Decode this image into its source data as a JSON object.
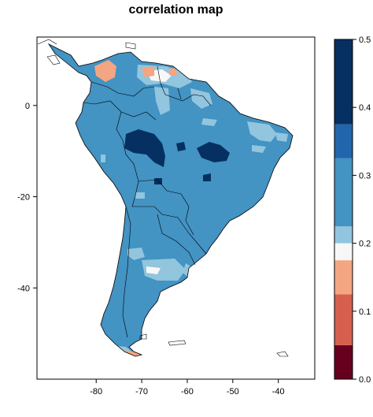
{
  "title": "correlation map",
  "chart_data": {
    "type": "heatmap",
    "title": "correlation map",
    "xlabel": "",
    "ylabel": "",
    "x_ticks": [
      -80,
      -70,
      -60,
      -50,
      -40
    ],
    "y_ticks": [
      0,
      -20,
      -40
    ],
    "xlim": [
      -93,
      -32
    ],
    "ylim": [
      -60,
      15
    ],
    "colorbar": {
      "ticks": [
        0.0,
        0.1,
        0.2,
        0.3,
        0.4,
        0.5
      ],
      "levels": [
        {
          "from": 0.0,
          "to": 0.05,
          "color": "#67001f"
        },
        {
          "from": 0.05,
          "to": 0.125,
          "color": "#d6604d"
        },
        {
          "from": 0.125,
          "to": 0.175,
          "color": "#f4a582"
        },
        {
          "from": 0.175,
          "to": 0.2,
          "color": "#f7f7f7"
        },
        {
          "from": 0.2,
          "to": 0.225,
          "color": "#92c5de"
        },
        {
          "from": 0.225,
          "to": 0.325,
          "color": "#4393c3"
        },
        {
          "from": 0.325,
          "to": 0.375,
          "color": "#2166ac"
        },
        {
          "from": 0.375,
          "to": 0.5,
          "color": "#053061"
        }
      ]
    }
  }
}
